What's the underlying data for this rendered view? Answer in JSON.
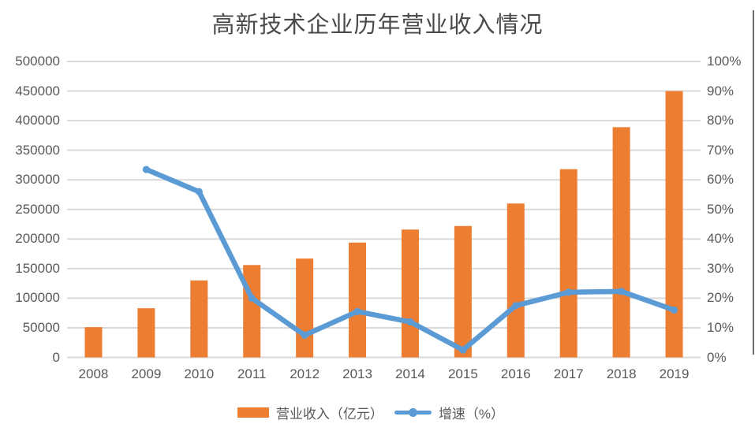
{
  "chart_data": {
    "type": "combo",
    "title": "高新技术企业历年营业收入情况",
    "categories": [
      "2008",
      "2009",
      "2010",
      "2011",
      "2012",
      "2013",
      "2014",
      "2015",
      "2016",
      "2017",
      "2018",
      "2019"
    ],
    "series": [
      {
        "name": "营业收入（亿元）",
        "type": "bar",
        "axis": "left",
        "color": "#ED7D31",
        "values": [
          51000,
          83000,
          130000,
          156000,
          167000,
          194000,
          216000,
          222000,
          260000,
          318000,
          389000,
          450000
        ]
      },
      {
        "name": "增速（%）",
        "type": "line",
        "axis": "right",
        "color": "#5B9BD5",
        "values": [
          null,
          63.5,
          56,
          20,
          7.5,
          15.5,
          12,
          2.5,
          17.5,
          22,
          22.3,
          16
        ]
      }
    ],
    "left_axis": {
      "min": 0,
      "max": 500000,
      "step": 50000,
      "tick_labels": [
        "0",
        "50000",
        "100000",
        "150000",
        "200000",
        "250000",
        "300000",
        "350000",
        "400000",
        "450000",
        "500000"
      ]
    },
    "right_axis": {
      "min": 0,
      "max": 100,
      "step": 10,
      "tick_labels": [
        "0%",
        "10%",
        "20%",
        "30%",
        "40%",
        "50%",
        "60%",
        "70%",
        "80%",
        "90%",
        "100%"
      ]
    },
    "gridlines": true,
    "legend_position": "bottom",
    "colors": {
      "grid": "#D9D9D9",
      "axis_text": "#595959",
      "title_text": "#4a4a4a",
      "bar": "#ED7D31",
      "line": "#5B9BD5"
    }
  }
}
